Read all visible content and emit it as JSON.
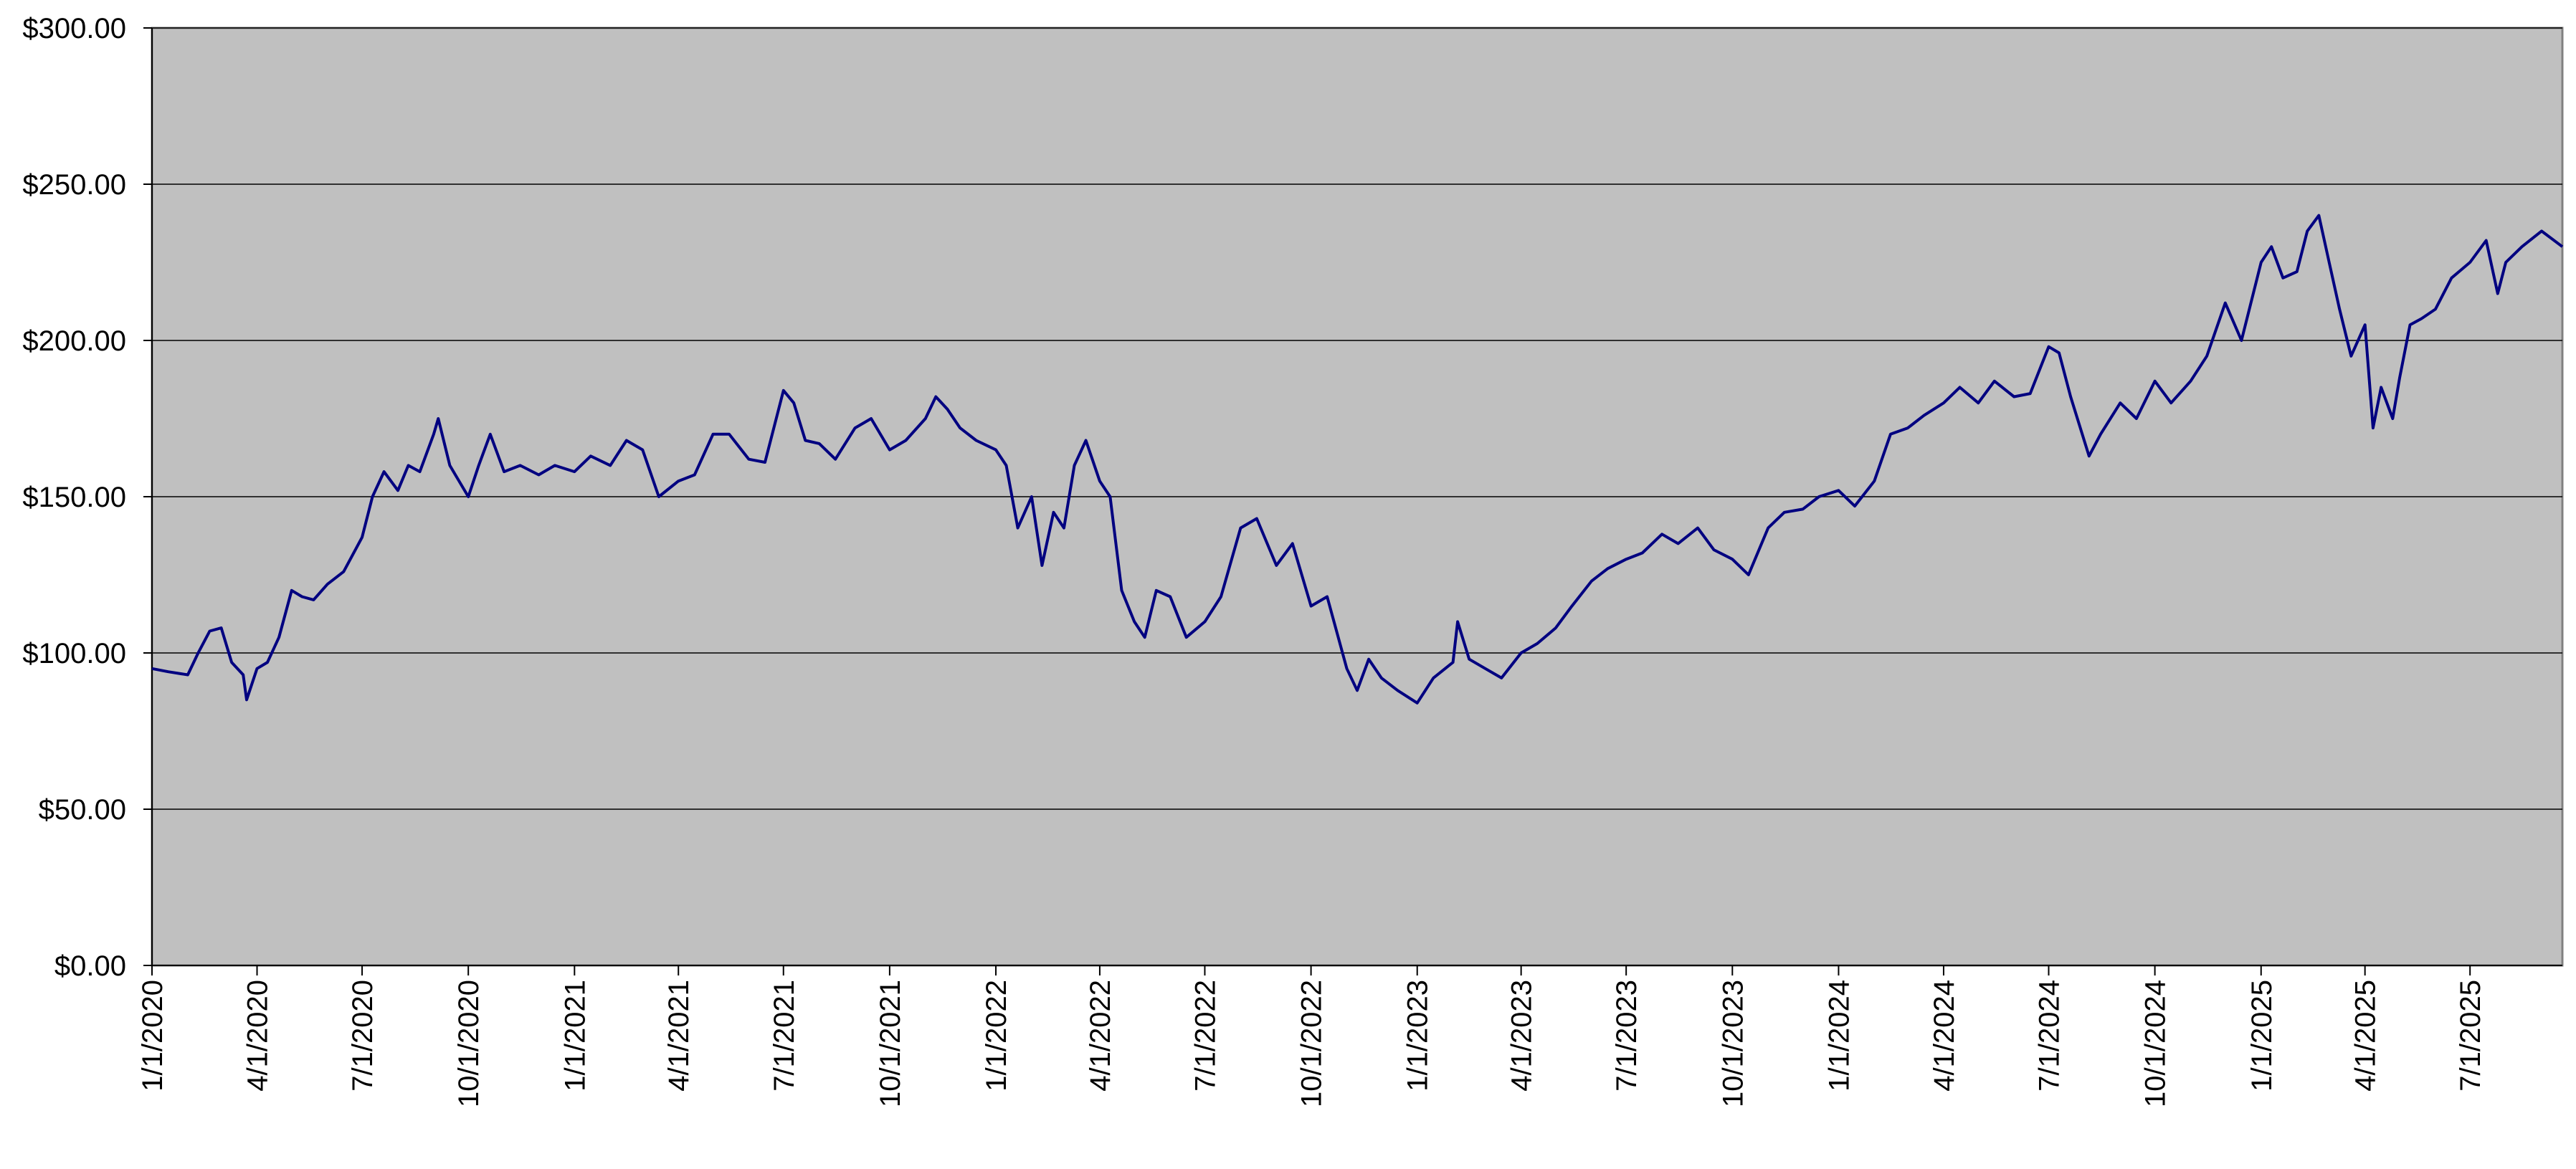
{
  "chart_data": {
    "type": "line",
    "x": [
      "2020-01-01",
      "2020-01-15",
      "2020-02-01",
      "2020-02-10",
      "2020-02-20",
      "2020-03-01",
      "2020-03-10",
      "2020-03-20",
      "2020-03-23",
      "2020-04-01",
      "2020-04-10",
      "2020-04-20",
      "2020-05-01",
      "2020-05-10",
      "2020-05-20",
      "2020-06-01",
      "2020-06-15",
      "2020-07-01",
      "2020-07-10",
      "2020-07-20",
      "2020-08-01",
      "2020-08-10",
      "2020-08-20",
      "2020-09-01",
      "2020-09-05",
      "2020-09-15",
      "2020-10-01",
      "2020-10-10",
      "2020-10-20",
      "2020-11-01",
      "2020-11-15",
      "2020-12-01",
      "2020-12-15",
      "2021-01-01",
      "2021-01-15",
      "2021-02-01",
      "2021-02-15",
      "2021-03-01",
      "2021-03-15",
      "2021-04-01",
      "2021-04-15",
      "2021-05-01",
      "2021-05-15",
      "2021-06-01",
      "2021-06-15",
      "2021-07-01",
      "2021-07-10",
      "2021-07-20",
      "2021-08-01",
      "2021-08-15",
      "2021-09-01",
      "2021-09-15",
      "2021-10-01",
      "2021-10-15",
      "2021-11-01",
      "2021-11-10",
      "2021-11-20",
      "2021-12-01",
      "2021-12-15",
      "2022-01-01",
      "2022-01-10",
      "2022-01-20",
      "2022-02-01",
      "2022-02-10",
      "2022-02-20",
      "2022-03-01",
      "2022-03-10",
      "2022-03-20",
      "2022-04-01",
      "2022-04-10",
      "2022-04-20",
      "2022-05-01",
      "2022-05-10",
      "2022-05-20",
      "2022-06-01",
      "2022-06-15",
      "2022-07-01",
      "2022-07-15",
      "2022-08-01",
      "2022-08-15",
      "2022-09-01",
      "2022-09-15",
      "2022-10-01",
      "2022-10-15",
      "2022-11-01",
      "2022-11-10",
      "2022-11-20",
      "2022-12-01",
      "2022-12-15",
      "2023-01-01",
      "2023-01-15",
      "2023-02-01",
      "2023-02-05",
      "2023-02-15",
      "2023-03-01",
      "2023-03-15",
      "2023-04-01",
      "2023-04-15",
      "2023-05-01",
      "2023-05-15",
      "2023-06-01",
      "2023-06-15",
      "2023-07-01",
      "2023-07-15",
      "2023-08-01",
      "2023-08-15",
      "2023-09-01",
      "2023-09-15",
      "2023-10-01",
      "2023-10-15",
      "2023-11-01",
      "2023-11-15",
      "2023-12-01",
      "2023-12-15",
      "2024-01-01",
      "2024-01-15",
      "2024-02-01",
      "2024-02-15",
      "2024-03-01",
      "2024-03-15",
      "2024-04-01",
      "2024-04-15",
      "2024-05-01",
      "2024-05-15",
      "2024-06-01",
      "2024-06-15",
      "2024-07-01",
      "2024-07-10",
      "2024-07-20",
      "2024-08-05",
      "2024-08-15",
      "2024-09-01",
      "2024-09-15",
      "2024-10-01",
      "2024-10-15",
      "2024-11-01",
      "2024-11-15",
      "2024-12-01",
      "2024-12-15",
      "2025-01-01",
      "2025-01-10",
      "2025-01-20",
      "2025-02-01",
      "2025-02-10",
      "2025-02-20",
      "2025-03-01",
      "2025-03-10",
      "2025-03-20",
      "2025-04-01",
      "2025-04-08",
      "2025-04-15",
      "2025-04-25",
      "2025-05-01",
      "2025-05-10",
      "2025-05-20",
      "2025-06-01",
      "2025-06-15",
      "2025-07-01",
      "2025-07-15",
      "2025-07-25",
      "2025-08-01",
      "2025-08-15",
      "2025-09-01",
      "2025-09-19"
    ],
    "series": [
      {
        "color": "#000080",
        "values": [
          95,
          94,
          93,
          100,
          107,
          108,
          97,
          93,
          85,
          95,
          97,
          105,
          120,
          118,
          117,
          122,
          126,
          137,
          150,
          158,
          152,
          160,
          158,
          170,
          175,
          160,
          150,
          160,
          170,
          158,
          160,
          157,
          160,
          158,
          163,
          160,
          168,
          165,
          150,
          155,
          157,
          170,
          170,
          162,
          161,
          184,
          180,
          168,
          167,
          162,
          172,
          175,
          165,
          168,
          175,
          182,
          178,
          172,
          168,
          165,
          160,
          140,
          150,
          128,
          145,
          140,
          160,
          168,
          155,
          150,
          120,
          110,
          105,
          120,
          118,
          105,
          110,
          118,
          140,
          143,
          128,
          135,
          115,
          118,
          95,
          88,
          98,
          92,
          88,
          84,
          92,
          97,
          110,
          98,
          95,
          92,
          100,
          103,
          108,
          115,
          123,
          127,
          130,
          132,
          138,
          135,
          140,
          133,
          130,
          125,
          140,
          145,
          146,
          150,
          152,
          147,
          155,
          170,
          172,
          176,
          180,
          185,
          180,
          187,
          182,
          183,
          198,
          196,
          182,
          163,
          170,
          180,
          175,
          187,
          180,
          187,
          195,
          212,
          200,
          225,
          230,
          220,
          222,
          235,
          240,
          225,
          210,
          195,
          205,
          172,
          185,
          175,
          188,
          205,
          207,
          210,
          220,
          225,
          232,
          215,
          225,
          230,
          235,
          230
        ]
      }
    ],
    "xlim": [
      "2020-01-01",
      "2025-09-19"
    ],
    "xticks": [
      {
        "value": "2020-01-01",
        "label": "1/1/2020"
      },
      {
        "value": "2020-04-01",
        "label": "4/1/2020"
      },
      {
        "value": "2020-07-01",
        "label": "7/1/2020"
      },
      {
        "value": "2020-10-01",
        "label": "10/1/2020"
      },
      {
        "value": "2021-01-01",
        "label": "1/1/2021"
      },
      {
        "value": "2021-04-01",
        "label": "4/1/2021"
      },
      {
        "value": "2021-07-01",
        "label": "7/1/2021"
      },
      {
        "value": "2021-10-01",
        "label": "10/1/2021"
      },
      {
        "value": "2022-01-01",
        "label": "1/1/2022"
      },
      {
        "value": "2022-04-01",
        "label": "4/1/2022"
      },
      {
        "value": "2022-07-01",
        "label": "7/1/2022"
      },
      {
        "value": "2022-10-01",
        "label": "10/1/2022"
      },
      {
        "value": "2023-01-01",
        "label": "1/1/2023"
      },
      {
        "value": "2023-04-01",
        "label": "4/1/2023"
      },
      {
        "value": "2023-07-01",
        "label": "7/1/2023"
      },
      {
        "value": "2023-10-01",
        "label": "10/1/2023"
      },
      {
        "value": "2024-01-01",
        "label": "1/1/2024"
      },
      {
        "value": "2024-04-01",
        "label": "4/1/2024"
      },
      {
        "value": "2024-07-01",
        "label": "7/1/2024"
      },
      {
        "value": "2024-10-01",
        "label": "10/1/2024"
      },
      {
        "value": "2025-01-01",
        "label": "1/1/2025"
      },
      {
        "value": "2025-04-01",
        "label": "4/1/2025"
      },
      {
        "value": "2025-07-01",
        "label": "7/1/2025"
      }
    ],
    "ylim": [
      0,
      300
    ],
    "yticks": [
      {
        "value": 0,
        "label": "$0.00"
      },
      {
        "value": 50,
        "label": "$50.00"
      },
      {
        "value": 100,
        "label": "$100.00"
      },
      {
        "value": 150,
        "label": "$150.00"
      },
      {
        "value": 200,
        "label": "$200.00"
      },
      {
        "value": 250,
        "label": "$250.00"
      },
      {
        "value": 300,
        "label": "$300.00"
      }
    ],
    "grid": true,
    "plot_background": "#c0c0c0"
  }
}
